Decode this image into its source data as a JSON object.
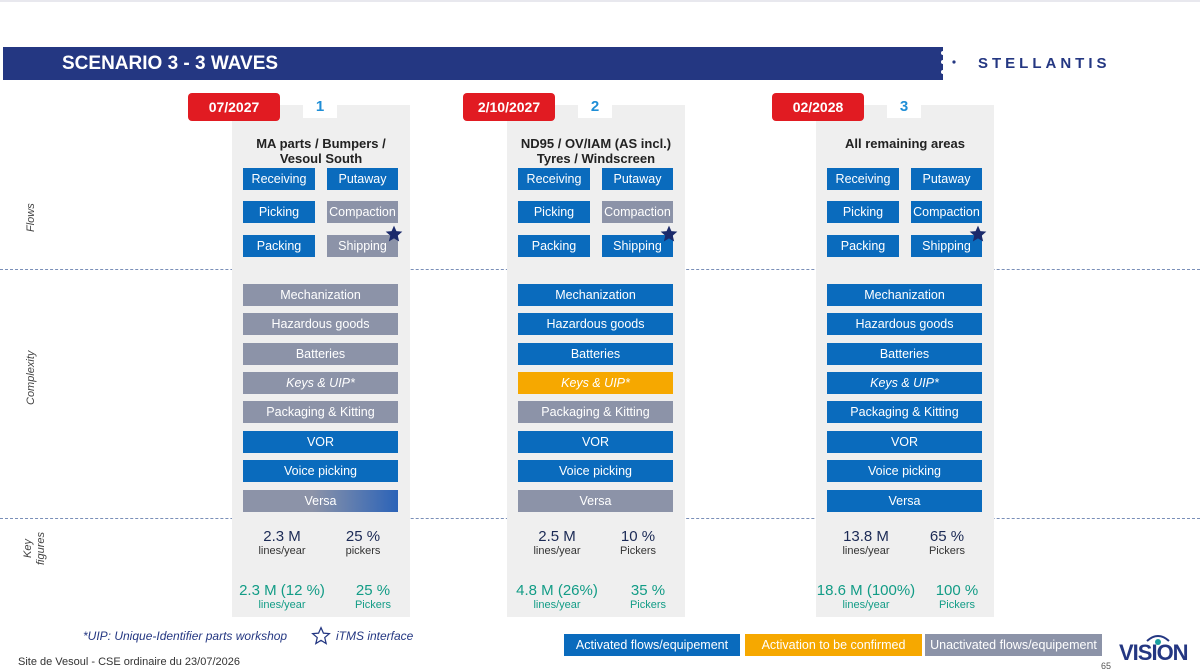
{
  "header": {
    "title": "SCENARIO 3 - 3 WAVES",
    "brand": "STELLANTIS"
  },
  "row_labels": {
    "flows": "Flows",
    "complexity": "Complexity",
    "key_figures_1": "Key",
    "key_figures_2": "figures"
  },
  "waves": [
    {
      "date": "07/2027",
      "number": "1",
      "title_line1": "MA parts / Bumpers /",
      "title_line2": "Vesoul South",
      "flows": [
        {
          "label": "Receiving",
          "status": "activated"
        },
        {
          "label": "Putaway",
          "status": "activated"
        },
        {
          "label": "Picking",
          "status": "activated"
        },
        {
          "label": "Compaction",
          "status": "unactivated"
        },
        {
          "label": "Packing",
          "status": "activated"
        },
        {
          "label": "Shipping",
          "status": "unactivated",
          "itms": true
        }
      ],
      "complexity": [
        {
          "label": "Mechanization",
          "status": "unactivated"
        },
        {
          "label": "Hazardous goods",
          "status": "unactivated"
        },
        {
          "label": "Batteries",
          "status": "unactivated"
        },
        {
          "label": "Keys & UIP*",
          "status": "unactivated",
          "italic": true
        },
        {
          "label": "Packaging & Kitting",
          "status": "unactivated"
        },
        {
          "label": "VOR",
          "status": "activated"
        },
        {
          "label": "Voice picking",
          "status": "activated"
        },
        {
          "label": "Versa",
          "status": "partial"
        }
      ],
      "key_figures": {
        "lines_value": "2.3 M",
        "lines_unit": "lines/year",
        "pickers_value": "25 %",
        "pickers_unit": "pickers",
        "cum_lines_value": "2.3 M (12 %)",
        "cum_lines_unit": "lines/year",
        "cum_pickers_value": "25 %",
        "cum_pickers_unit": "Pickers"
      }
    },
    {
      "date": "2/10/2027",
      "number": "2",
      "title_line1": "ND95 / OV/IAM (AS incl.)",
      "title_line2": "Tyres / Windscreen",
      "flows": [
        {
          "label": "Receiving",
          "status": "activated"
        },
        {
          "label": "Putaway",
          "status": "activated"
        },
        {
          "label": "Picking",
          "status": "activated"
        },
        {
          "label": "Compaction",
          "status": "unactivated"
        },
        {
          "label": "Packing",
          "status": "activated"
        },
        {
          "label": "Shipping",
          "status": "activated",
          "itms": true
        }
      ],
      "complexity": [
        {
          "label": "Mechanization",
          "status": "activated"
        },
        {
          "label": "Hazardous goods",
          "status": "activated"
        },
        {
          "label": "Batteries",
          "status": "activated"
        },
        {
          "label": "Keys & UIP*",
          "status": "to_confirm",
          "italic": true
        },
        {
          "label": "Packaging & Kitting",
          "status": "unactivated"
        },
        {
          "label": "VOR",
          "status": "activated"
        },
        {
          "label": "Voice picking",
          "status": "activated"
        },
        {
          "label": "Versa",
          "status": "unactivated"
        }
      ],
      "key_figures": {
        "lines_value": "2.5 M",
        "lines_unit": "lines/year",
        "pickers_value": "10 %",
        "pickers_unit": "Pickers",
        "cum_lines_value": "4.8 M (26%)",
        "cum_lines_unit": "lines/year",
        "cum_pickers_value": "35 %",
        "cum_pickers_unit": "Pickers"
      }
    },
    {
      "date": "02/2028",
      "number": "3",
      "title_line1": "All remaining areas",
      "title_line2": "",
      "flows": [
        {
          "label": "Receiving",
          "status": "activated"
        },
        {
          "label": "Putaway",
          "status": "activated"
        },
        {
          "label": "Picking",
          "status": "activated"
        },
        {
          "label": "Compaction",
          "status": "activated"
        },
        {
          "label": "Packing",
          "status": "activated"
        },
        {
          "label": "Shipping",
          "status": "activated",
          "itms": true
        }
      ],
      "complexity": [
        {
          "label": "Mechanization",
          "status": "activated"
        },
        {
          "label": "Hazardous goods",
          "status": "activated"
        },
        {
          "label": "Batteries",
          "status": "activated"
        },
        {
          "label": "Keys & UIP*",
          "status": "activated",
          "italic": true
        },
        {
          "label": "Packaging & Kitting",
          "status": "activated"
        },
        {
          "label": "VOR",
          "status": "activated"
        },
        {
          "label": "Voice picking",
          "status": "activated"
        },
        {
          "label": "Versa",
          "status": "activated"
        }
      ],
      "key_figures": {
        "lines_value": "13.8 M",
        "lines_unit": "lines/year",
        "pickers_value": "65 %",
        "pickers_unit": "Pickers",
        "cum_lines_value": "18.6 M (100%)",
        "cum_lines_unit": "lines/year",
        "cum_pickers_value": "100 %",
        "cum_pickers_unit": "Pickers"
      }
    }
  ],
  "footnotes": {
    "uip": "*UIP: Unique-Identifier parts workshop",
    "itms": "iTMS interface"
  },
  "legend": {
    "activated": "Activated flows/equipement",
    "to_confirm": "Activation to be confirmed",
    "unactivated": "Unactivated flows/equipement"
  },
  "colors": {
    "activated": "#0a6bbd",
    "to_confirm": "#f6a800",
    "unactivated": "#8c93a8",
    "date_badge": "#e11b22",
    "banner": "#243782"
  },
  "footer": {
    "site": "Site de Vesoul - CSE ordinaire du 23/07/2026",
    "page": "65",
    "logo_text": "VISION"
  }
}
